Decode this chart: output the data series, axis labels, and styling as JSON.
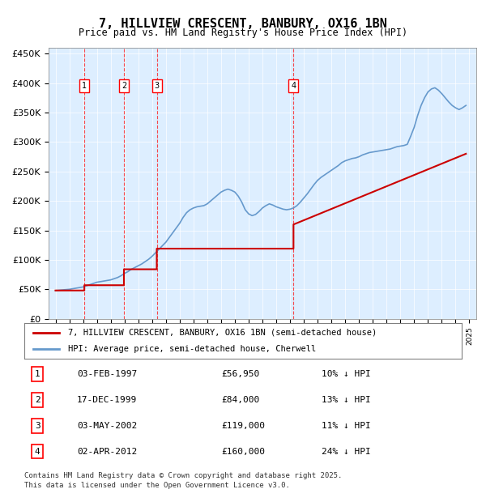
{
  "title": "7, HILLVIEW CRESCENT, BANBURY, OX16 1BN",
  "subtitle": "Price paid vs. HM Land Registry's House Price Index (HPI)",
  "legend_line1": "7, HILLVIEW CRESCENT, BANBURY, OX16 1BN (semi-detached house)",
  "legend_line2": "HPI: Average price, semi-detached house, Cherwell",
  "footer_line1": "Contains HM Land Registry data © Crown copyright and database right 2025.",
  "footer_line2": "This data is licensed under the Open Government Licence v3.0.",
  "sales": [
    {
      "label": "1",
      "date_str": "03-FEB-1997",
      "date_x": 1997.09,
      "price": 56950,
      "hpi_pct": "10% ↓ HPI"
    },
    {
      "label": "2",
      "date_str": "17-DEC-1999",
      "date_x": 1999.96,
      "price": 84000,
      "hpi_pct": "13% ↓ HPI"
    },
    {
      "label": "3",
      "date_str": "03-MAY-2002",
      "date_x": 2002.34,
      "price": 119000,
      "hpi_pct": "11% ↓ HPI"
    },
    {
      "label": "4",
      "date_str": "02-APR-2012",
      "date_x": 2012.25,
      "price": 160000,
      "hpi_pct": "24% ↓ HPI"
    }
  ],
  "hpi_color": "#6699cc",
  "sale_color": "#cc0000",
  "bg_color": "#ddeeff",
  "plot_bg": "#ddeeff",
  "ylim": [
    0,
    460000
  ],
  "yticks": [
    0,
    50000,
    100000,
    150000,
    200000,
    250000,
    300000,
    350000,
    400000,
    450000
  ],
  "ytick_labels": [
    "£0",
    "£50K",
    "£100K",
    "£150K",
    "£200K",
    "£250K",
    "£300K",
    "£350K",
    "£400K",
    "£450K"
  ],
  "xlim_start": 1994.5,
  "xlim_end": 2025.5,
  "hpi_data": {
    "years": [
      1995,
      1995.25,
      1995.5,
      1995.75,
      1996,
      1996.25,
      1996.5,
      1996.75,
      1997,
      1997.25,
      1997.5,
      1997.75,
      1998,
      1998.25,
      1998.5,
      1998.75,
      1999,
      1999.25,
      1999.5,
      1999.75,
      2000,
      2000.25,
      2000.5,
      2000.75,
      2001,
      2001.25,
      2001.5,
      2001.75,
      2002,
      2002.25,
      2002.5,
      2002.75,
      2003,
      2003.25,
      2003.5,
      2003.75,
      2004,
      2004.25,
      2004.5,
      2004.75,
      2005,
      2005.25,
      2005.5,
      2005.75,
      2006,
      2006.25,
      2006.5,
      2006.75,
      2007,
      2007.25,
      2007.5,
      2007.75,
      2008,
      2008.25,
      2008.5,
      2008.75,
      2009,
      2009.25,
      2009.5,
      2009.75,
      2010,
      2010.25,
      2010.5,
      2010.75,
      2011,
      2011.25,
      2011.5,
      2011.75,
      2012,
      2012.25,
      2012.5,
      2012.75,
      2013,
      2013.25,
      2013.5,
      2013.75,
      2014,
      2014.25,
      2014.5,
      2014.75,
      2015,
      2015.25,
      2015.5,
      2015.75,
      2016,
      2016.25,
      2016.5,
      2016.75,
      2017,
      2017.25,
      2017.5,
      2017.75,
      2018,
      2018.25,
      2018.5,
      2018.75,
      2019,
      2019.25,
      2019.5,
      2019.75,
      2020,
      2020.25,
      2020.5,
      2020.75,
      2021,
      2021.25,
      2021.5,
      2021.75,
      2022,
      2022.25,
      2022.5,
      2022.75,
      2023,
      2023.25,
      2023.5,
      2023.75,
      2024,
      2024.25,
      2024.5,
      2024.75
    ],
    "values": [
      48000,
      48500,
      49000,
      49500,
      50000,
      51000,
      52000,
      53000,
      54000,
      56000,
      58000,
      60000,
      62000,
      63000,
      64000,
      65000,
      66000,
      68000,
      70000,
      73000,
      77000,
      80000,
      84000,
      87000,
      90000,
      93000,
      97000,
      101000,
      106000,
      112000,
      118000,
      124000,
      130000,
      138000,
      146000,
      154000,
      162000,
      172000,
      180000,
      185000,
      188000,
      190000,
      191000,
      192000,
      195000,
      200000,
      205000,
      210000,
      215000,
      218000,
      220000,
      218000,
      215000,
      208000,
      198000,
      185000,
      178000,
      175000,
      177000,
      182000,
      188000,
      192000,
      195000,
      193000,
      190000,
      188000,
      186000,
      185000,
      186000,
      188000,
      192000,
      198000,
      205000,
      212000,
      220000,
      228000,
      235000,
      240000,
      244000,
      248000,
      252000,
      256000,
      260000,
      265000,
      268000,
      270000,
      272000,
      273000,
      275000,
      278000,
      280000,
      282000,
      283000,
      284000,
      285000,
      286000,
      287000,
      288000,
      290000,
      292000,
      293000,
      294000,
      296000,
      310000,
      325000,
      345000,
      362000,
      375000,
      385000,
      390000,
      392000,
      388000,
      382000,
      375000,
      368000,
      362000,
      358000,
      355000,
      358000,
      362000
    ]
  },
  "sale_line_data": {
    "years": [
      1995,
      1997.09,
      1997.09,
      1999.96,
      1999.96,
      2002.34,
      2002.34,
      2012.25,
      2012.25,
      2024.75
    ],
    "values": [
      48000,
      48000,
      56950,
      56950,
      84000,
      84000,
      119000,
      119000,
      160000,
      280000
    ]
  }
}
